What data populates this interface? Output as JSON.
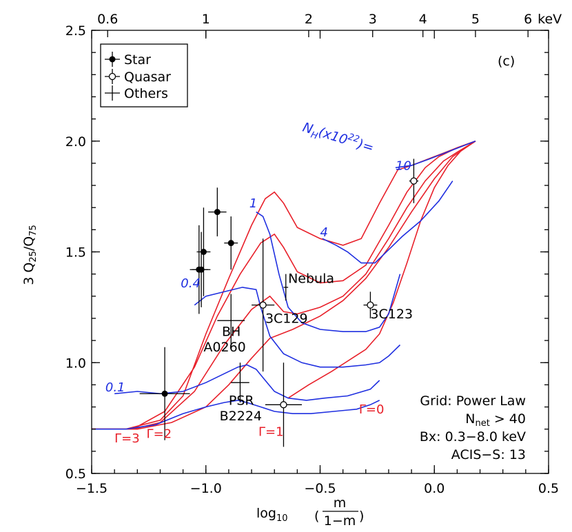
{
  "chart_data": {
    "type": "scatter",
    "panel_label": "(c)",
    "xlabel_prefix": "log",
    "xlabel_sub": "10",
    "xlabel_num": "m",
    "xlabel_den": "1−m",
    "ylabel_pre": "3 Q",
    "ylabel_sub1": "25",
    "ylabel_mid": "/Q",
    "ylabel_sub2": "75",
    "xlim": [
      -1.5,
      0.5
    ],
    "ylim": [
      0.5,
      2.5
    ],
    "x_ticks": [
      -1.5,
      -1.0,
      -0.5,
      0.0,
      0.5
    ],
    "x_tick_labels": [
      "−1.5",
      "−1.0",
      "−0.5",
      "0.0",
      "0.5"
    ],
    "y_ticks": [
      0.5,
      1.0,
      1.5,
      2.0,
      2.5
    ],
    "y_tick_labels": [
      "0.5",
      "1.0",
      "1.5",
      "2.0",
      "2.5"
    ],
    "top_axis_label_last": "keV",
    "top_ticks": [
      {
        "x": -1.43,
        "label": "0.6"
      },
      {
        "x": -1.0,
        "label": "1"
      },
      {
        "x": -0.55,
        "label": "2"
      },
      {
        "x": -0.27,
        "label": "3"
      },
      {
        "x": -0.05,
        "label": "4"
      },
      {
        "x": 0.18,
        "label": "5"
      },
      {
        "x": 0.41,
        "label": "6"
      }
    ],
    "legend": {
      "position": "top-left",
      "entries": [
        "Star",
        "Quasar",
        "Others"
      ]
    },
    "grid_note": [
      "Grid: Power Law",
      "N",
      "net",
      " > 40",
      "Bx: 0.3−8.0 keV",
      "ACIS−S: 13"
    ],
    "colors": {
      "gamma": "#e8202a",
      "nh": "#1f2fe0",
      "axes": "#000000"
    },
    "gamma_lines": [
      {
        "label": "Γ=3",
        "points": [
          [
            -1.5,
            0.7
          ],
          [
            -1.35,
            0.7
          ],
          [
            -1.2,
            0.74
          ],
          [
            -1.1,
            0.85
          ],
          [
            -1.0,
            1.13
          ],
          [
            -0.9,
            1.38
          ],
          [
            -0.8,
            1.62
          ],
          [
            -0.74,
            1.74
          ],
          [
            -0.7,
            1.77
          ],
          [
            -0.66,
            1.72
          ],
          [
            -0.6,
            1.61
          ],
          [
            -0.5,
            1.56
          ],
          [
            -0.4,
            1.53
          ],
          [
            -0.32,
            1.56
          ],
          [
            -0.24,
            1.72
          ],
          [
            -0.16,
            1.87
          ],
          [
            -0.1,
            1.89
          ],
          [
            0.0,
            1.93
          ],
          [
            0.1,
            1.97
          ],
          [
            0.18,
            2.0
          ]
        ]
      },
      {
        "label": "Γ=2",
        "points": [
          [
            -1.5,
            0.7
          ],
          [
            -1.32,
            0.7
          ],
          [
            -1.18,
            0.78
          ],
          [
            -1.05,
            0.98
          ],
          [
            -0.95,
            1.21
          ],
          [
            -0.85,
            1.4
          ],
          [
            -0.76,
            1.54
          ],
          [
            -0.7,
            1.58
          ],
          [
            -0.66,
            1.52
          ],
          [
            -0.6,
            1.41
          ],
          [
            -0.5,
            1.36
          ],
          [
            -0.4,
            1.37
          ],
          [
            -0.3,
            1.44
          ],
          [
            -0.2,
            1.62
          ],
          [
            -0.12,
            1.77
          ],
          [
            -0.04,
            1.88
          ],
          [
            0.02,
            1.93
          ],
          [
            0.1,
            1.97
          ],
          [
            0.18,
            2.0
          ]
        ]
      },
      {
        "label": "Γ=1",
        "points": [
          [
            -1.5,
            0.7
          ],
          [
            -1.32,
            0.7
          ],
          [
            -1.2,
            0.73
          ],
          [
            -1.05,
            0.87
          ],
          [
            -0.92,
            1.08
          ],
          [
            -0.8,
            1.24
          ],
          [
            -0.72,
            1.3
          ],
          [
            -0.66,
            1.23
          ],
          [
            -0.6,
            1.22
          ],
          [
            -0.5,
            1.25
          ],
          [
            -0.4,
            1.3
          ],
          [
            -0.3,
            1.4
          ],
          [
            -0.2,
            1.56
          ],
          [
            -0.12,
            1.7
          ],
          [
            -0.04,
            1.82
          ],
          [
            0.04,
            1.91
          ],
          [
            0.1,
            1.95
          ],
          [
            0.18,
            2.0
          ]
        ]
      },
      {
        "label": "",
        "points": [
          [
            -1.5,
            0.7
          ],
          [
            -1.3,
            0.7
          ],
          [
            -1.15,
            0.73
          ],
          [
            -1.0,
            0.8
          ],
          [
            -0.9,
            0.9
          ],
          [
            -0.8,
            1.02
          ],
          [
            -0.72,
            1.11
          ],
          [
            -0.62,
            1.15
          ],
          [
            -0.5,
            1.21
          ],
          [
            -0.4,
            1.28
          ],
          [
            -0.3,
            1.38
          ],
          [
            -0.2,
            1.52
          ],
          [
            -0.1,
            1.68
          ],
          [
            0.0,
            1.83
          ],
          [
            0.08,
            1.93
          ],
          [
            0.18,
            2.0
          ]
        ]
      },
      {
        "label": "Γ=0",
        "points": [
          [
            -0.64,
            0.84
          ],
          [
            -0.55,
            0.9
          ],
          [
            -0.45,
            0.96
          ],
          [
            -0.36,
            1.02
          ],
          [
            -0.3,
            1.06
          ],
          [
            -0.24,
            1.13
          ],
          [
            -0.18,
            1.27
          ],
          [
            -0.12,
            1.45
          ],
          [
            -0.06,
            1.64
          ],
          [
            0.0,
            1.79
          ],
          [
            0.06,
            1.89
          ],
          [
            0.12,
            1.96
          ],
          [
            0.18,
            2.0
          ]
        ]
      }
    ],
    "nh_lines": [
      {
        "label": "10",
        "points": [
          [
            -0.17,
            1.88
          ],
          [
            -0.1,
            1.89
          ],
          [
            -0.02,
            1.92
          ],
          [
            0.08,
            1.96
          ],
          [
            0.18,
            2.0
          ]
        ]
      },
      {
        "label": "4",
        "points": [
          [
            -0.49,
            1.56
          ],
          [
            -0.43,
            1.53
          ],
          [
            -0.38,
            1.5
          ],
          [
            -0.32,
            1.45
          ],
          [
            -0.26,
            1.45
          ],
          [
            -0.2,
            1.51
          ],
          [
            -0.14,
            1.57
          ],
          [
            -0.06,
            1.64
          ],
          [
            0.02,
            1.73
          ],
          [
            0.08,
            1.82
          ]
        ]
      },
      {
        "label": "1",
        "points": [
          [
            -0.78,
            1.68
          ],
          [
            -0.75,
            1.66
          ],
          [
            -0.72,
            1.58
          ],
          [
            -0.68,
            1.4
          ],
          [
            -0.64,
            1.25
          ],
          [
            -0.58,
            1.18
          ],
          [
            -0.5,
            1.15
          ],
          [
            -0.4,
            1.14
          ],
          [
            -0.3,
            1.14
          ],
          [
            -0.24,
            1.16
          ],
          [
            -0.2,
            1.22
          ],
          [
            -0.15,
            1.4
          ]
        ]
      },
      {
        "label": "0.4",
        "points": [
          [
            -1.05,
            1.26
          ],
          [
            -1.0,
            1.3
          ],
          [
            -0.92,
            1.32
          ],
          [
            -0.84,
            1.34
          ],
          [
            -0.78,
            1.33
          ],
          [
            -0.76,
            1.25
          ],
          [
            -0.72,
            1.12
          ],
          [
            -0.66,
            1.04
          ],
          [
            -0.58,
            1.0
          ],
          [
            -0.5,
            0.98
          ],
          [
            -0.4,
            0.98
          ],
          [
            -0.3,
            0.99
          ],
          [
            -0.24,
            1.0
          ],
          [
            -0.2,
            1.03
          ],
          [
            -0.15,
            1.08
          ]
        ]
      },
      {
        "label": "0.1",
        "points": [
          [
            -1.4,
            0.86
          ],
          [
            -1.3,
            0.87
          ],
          [
            -1.2,
            0.86
          ],
          [
            -1.1,
            0.87
          ],
          [
            -1.0,
            0.91
          ],
          [
            -0.92,
            0.95
          ],
          [
            -0.86,
            0.98
          ],
          [
            -0.82,
            0.99
          ],
          [
            -0.78,
            0.97
          ],
          [
            -0.74,
            0.92
          ],
          [
            -0.7,
            0.87
          ],
          [
            -0.64,
            0.84
          ],
          [
            -0.56,
            0.83
          ],
          [
            -0.48,
            0.84
          ],
          [
            -0.38,
            0.85
          ],
          [
            -0.28,
            0.88
          ],
          [
            -0.24,
            0.92
          ]
        ]
      },
      {
        "label": "",
        "points": [
          [
            -1.5,
            0.7
          ],
          [
            -1.35,
            0.7
          ],
          [
            -1.22,
            0.72
          ],
          [
            -1.1,
            0.77
          ],
          [
            -1.0,
            0.8
          ],
          [
            -0.92,
            0.82
          ],
          [
            -0.86,
            0.83
          ],
          [
            -0.82,
            0.82
          ],
          [
            -0.76,
            0.8
          ],
          [
            -0.7,
            0.78
          ],
          [
            -0.62,
            0.77
          ],
          [
            -0.54,
            0.77
          ],
          [
            -0.44,
            0.78
          ],
          [
            -0.34,
            0.79
          ],
          [
            -0.28,
            0.81
          ],
          [
            -0.24,
            0.83
          ]
        ]
      }
    ],
    "stars": [
      {
        "x": -1.03,
        "y": 1.42,
        "xerr": 0.04,
        "yerr": 0.2
      },
      {
        "x": -1.02,
        "y": 1.42,
        "xerr": 0.04,
        "yerr": 0.17
      },
      {
        "x": -1.01,
        "y": 1.5,
        "xerr": 0.03,
        "yerr": 0.2
      },
      {
        "x": -0.95,
        "y": 1.68,
        "xerr": 0.04,
        "yerr": 0.11
      },
      {
        "x": -0.89,
        "y": 1.54,
        "xerr": 0.03,
        "yerr": 0.12
      },
      {
        "x": -1.18,
        "y": 0.86,
        "xerr": 0.11,
        "yerr": 0.21
      }
    ],
    "quasars": [
      {
        "x": -0.75,
        "y": 1.26,
        "xerr": 0.05,
        "yerr": 0.3
      },
      {
        "x": -0.66,
        "y": 0.81,
        "xerr": 0.08,
        "yerr": 0.19
      },
      {
        "x": -0.28,
        "y": 1.26,
        "xerr": 0.03,
        "yerr": 0.06
      },
      {
        "x": -0.09,
        "y": 1.82,
        "xerr": 0.02,
        "yerr": 0.1
      }
    ],
    "others": [
      {
        "x": -0.89,
        "y": 1.19,
        "xerr": 0.06,
        "yerr": 0.12
      },
      {
        "x": -0.85,
        "y": 0.91,
        "xerr": 0.04,
        "yerr": 0.09
      },
      {
        "x": -0.65,
        "y": 1.34,
        "xerr": 0.01,
        "yerr": 0.06
      }
    ],
    "annotations": [
      {
        "text": "Nebula",
        "x": -0.64,
        "y": 1.36
      },
      {
        "text": "3C129",
        "x": -0.74,
        "y": 1.18
      },
      {
        "text": "3C123",
        "x": -0.28,
        "y": 1.2
      },
      {
        "text": "BH",
        "x": -0.93,
        "y": 1.12
      },
      {
        "text": "A0260",
        "x": -1.01,
        "y": 1.05
      },
      {
        "text": "PSR",
        "x": -0.9,
        "y": 0.81
      },
      {
        "text": "B2224",
        "x": -0.94,
        "y": 0.74
      }
    ]
  }
}
